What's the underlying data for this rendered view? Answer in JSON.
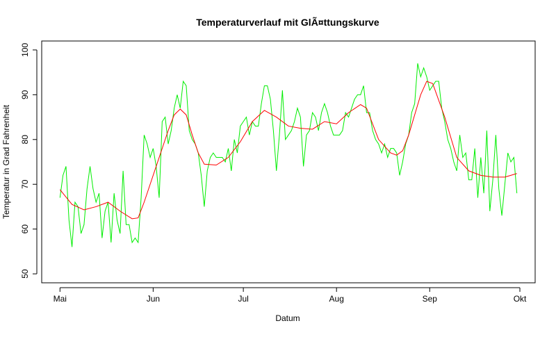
{
  "chart_data": {
    "type": "line",
    "title": "Temperaturverlauf mit GlÃ¤ttungskurve",
    "x_label": "Datum",
    "y_label": "Temperatur in Grad Fahrenheit",
    "xlim": [
      -6.08,
      158.08
    ],
    "ylim": [
      48,
      102
    ],
    "xticks": [
      {
        "value": 0,
        "label": "Mai"
      },
      {
        "value": 31,
        "label": "Jun"
      },
      {
        "value": 61,
        "label": "Jul"
      },
      {
        "value": 92,
        "label": "Aug"
      },
      {
        "value": 123,
        "label": "Sep"
      },
      {
        "value": 153,
        "label": "Okt"
      }
    ],
    "yticks": [
      50,
      60,
      70,
      80,
      90,
      100
    ],
    "grid": false,
    "series": [
      {
        "color": "#00ee00",
        "x": [
          0,
          1,
          2,
          3,
          4,
          5,
          6,
          7,
          8,
          9,
          10,
          11,
          12,
          13,
          14,
          15,
          16,
          17,
          18,
          19,
          20,
          21,
          22,
          23,
          24,
          25,
          26,
          27,
          28,
          29,
          30,
          31,
          32,
          33,
          34,
          35,
          36,
          37,
          38,
          39,
          40,
          41,
          42,
          43,
          44,
          45,
          46,
          47,
          48,
          49,
          50,
          51,
          52,
          53,
          54,
          55,
          56,
          57,
          58,
          59,
          60,
          61,
          62,
          63,
          64,
          65,
          66,
          67,
          68,
          69,
          70,
          71,
          72,
          73,
          74,
          75,
          76,
          77,
          78,
          79,
          80,
          81,
          82,
          83,
          84,
          85,
          86,
          87,
          88,
          89,
          90,
          91,
          92,
          93,
          94,
          95,
          96,
          97,
          98,
          99,
          100,
          101,
          102,
          103,
          104,
          105,
          106,
          107,
          108,
          109,
          110,
          111,
          112,
          113,
          114,
          115,
          116,
          117,
          118,
          119,
          120,
          121,
          122,
          123,
          124,
          125,
          126,
          127,
          128,
          129,
          130,
          131,
          132,
          133,
          134,
          135,
          136,
          137,
          138,
          139,
          140,
          141,
          142,
          143,
          144,
          145,
          146,
          147,
          148,
          149,
          150,
          151,
          152
        ],
        "values": [
          67,
          72,
          74,
          62,
          56,
          66,
          65,
          59,
          61,
          69,
          74,
          69,
          66,
          68,
          58,
          64,
          66,
          57,
          68,
          62,
          59,
          73,
          61,
          61,
          57,
          58,
          57,
          67,
          81,
          79,
          76,
          78,
          74,
          67,
          84,
          85,
          79,
          82,
          87,
          90,
          87,
          93,
          92,
          82,
          80,
          79,
          77,
          72,
          65,
          73,
          76,
          77,
          76,
          76,
          76,
          75,
          78,
          73,
          80,
          77,
          83,
          84,
          85,
          81,
          84,
          83,
          83,
          88,
          92,
          92,
          89,
          82,
          73,
          81,
          91,
          80,
          81,
          82,
          84,
          87,
          85,
          74,
          81,
          82,
          86,
          85,
          82,
          86,
          88,
          86,
          83,
          81,
          81,
          81,
          82,
          86,
          85,
          87,
          89,
          90,
          90,
          92,
          86,
          86,
          82,
          80,
          79,
          77,
          79,
          76,
          78,
          78,
          77,
          72,
          75,
          79,
          81,
          86,
          88,
          97,
          94,
          96,
          94,
          91,
          92,
          93,
          93,
          87,
          84,
          80,
          78,
          75,
          73,
          81,
          76,
          77,
          71,
          71,
          78,
          67,
          76,
          68,
          82,
          64,
          71,
          81,
          69,
          63,
          70,
          77,
          75,
          76,
          68
        ]
      },
      {
        "color": "#ff0000",
        "x": [
          0,
          4,
          8,
          12,
          16,
          20,
          24,
          26,
          28,
          32,
          36,
          38,
          40,
          42,
          44,
          46,
          48,
          52,
          56,
          60,
          64,
          68,
          72,
          76,
          80,
          84,
          88,
          92,
          96,
          100,
          102,
          106,
          110,
          112,
          114,
          116,
          120,
          122,
          124,
          128,
          132,
          136,
          140,
          144,
          148,
          152
        ],
        "values": [
          68.8,
          65.5,
          64.3,
          65,
          66,
          64,
          62.3,
          62.5,
          66,
          74,
          82,
          85.5,
          86.8,
          85.5,
          81,
          77,
          74.5,
          74.3,
          76,
          79.5,
          84,
          86.5,
          85,
          83,
          82.5,
          82.3,
          84,
          83.5,
          86,
          87.8,
          87,
          80,
          77,
          76.5,
          77.5,
          81,
          90,
          93,
          92.5,
          85,
          76,
          73,
          72,
          71.6,
          71.6,
          72.4
        ]
      }
    ]
  }
}
